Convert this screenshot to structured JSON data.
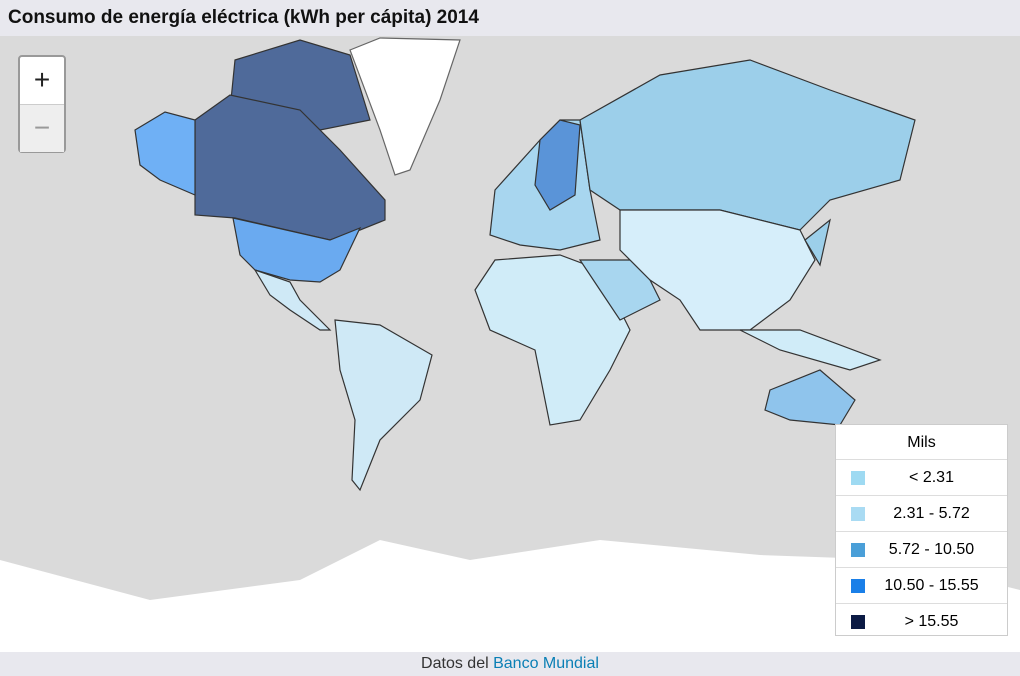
{
  "header": {
    "title": "Consumo de energía eléctrica (kWh per cápita) 2014"
  },
  "zoom": {
    "in": "+",
    "out": "−"
  },
  "legend": {
    "title": "Mils",
    "items": [
      {
        "label": "< 2.31",
        "color": "#9edaf2"
      },
      {
        "label": "2.31 - 5.72",
        "color": "#a9dbf3"
      },
      {
        "label": "5.72 - 10.50",
        "color": "#4a9fd8"
      },
      {
        "label": "10.50 - 15.55",
        "color": "#1a7fe8"
      },
      {
        "label": "> 15.55",
        "color": "#0b1a44"
      }
    ]
  },
  "footer": {
    "prefix": "Datos del",
    "link": "Banco Mundial"
  }
}
